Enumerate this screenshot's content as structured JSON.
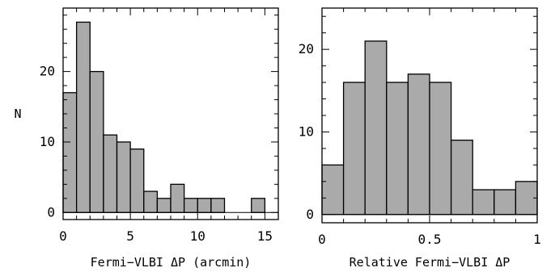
{
  "chart_data": [
    {
      "type": "bar",
      "histogram": true,
      "bin_edges": [
        0,
        1,
        2,
        3,
        4,
        5,
        6,
        7,
        8,
        9,
        10,
        11,
        12,
        13,
        14,
        15,
        16
      ],
      "values": [
        17,
        27,
        20,
        11,
        10,
        9,
        3,
        2,
        4,
        2,
        2,
        2,
        0,
        0,
        2,
        0
      ],
      "xlabel": "Fermi−VLBI ΔP (arcmin)",
      "ylabel": "N",
      "xlim": [
        0,
        16
      ],
      "ylim": [
        -1,
        29
      ],
      "x_ticks": [
        0,
        5,
        10,
        15
      ],
      "y_ticks": [
        0,
        10,
        20
      ],
      "x_minor_step": 1,
      "y_minor_step": 2,
      "grid": false
    },
    {
      "type": "bar",
      "histogram": true,
      "bin_edges": [
        0,
        0.1,
        0.2,
        0.3,
        0.4,
        0.5,
        0.6,
        0.7,
        0.8,
        0.9,
        1.0
      ],
      "values": [
        6,
        16,
        21,
        16,
        17,
        16,
        9,
        3,
        3,
        4
      ],
      "xlabel": "Relative Fermi−VLBI ΔP",
      "ylabel": "",
      "xlim": [
        0,
        1
      ],
      "ylim": [
        -1,
        25
      ],
      "x_ticks": [
        0,
        0.5,
        1
      ],
      "y_ticks": [
        0,
        10,
        20
      ],
      "x_minor_step": 0.1,
      "y_minor_step": 2,
      "grid": false
    }
  ]
}
